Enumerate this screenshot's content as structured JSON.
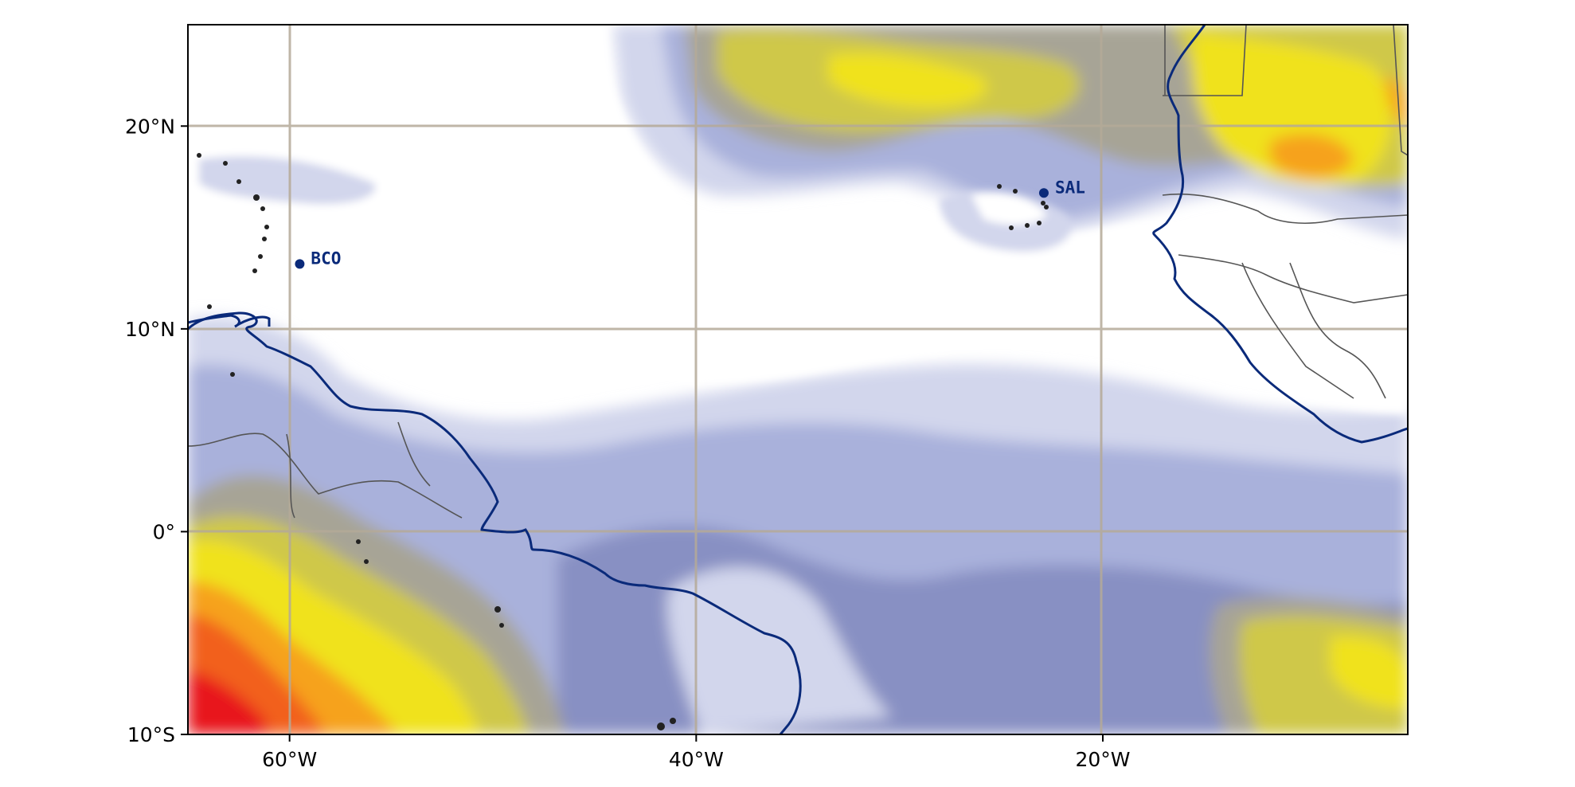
{
  "map": {
    "lon_range": [
      -65,
      -5
    ],
    "lat_range": [
      -10,
      25
    ],
    "gridlines": true,
    "x_ticks": [
      {
        "value": -60,
        "label": "60°W"
      },
      {
        "value": -40,
        "label": "40°W"
      },
      {
        "value": -20,
        "label": "20°W"
      }
    ],
    "y_ticks": [
      {
        "value": 20,
        "label": "20°N"
      },
      {
        "value": 10,
        "label": "10°N"
      },
      {
        "value": 0,
        "label": "0°"
      },
      {
        "value": -10,
        "label": "10°S"
      }
    ],
    "stations": [
      {
        "id": "bco",
        "label": "BCO",
        "lon": -59.5,
        "lat": 13.2
      },
      {
        "id": "sal",
        "label": "SAL",
        "lon": -22.9,
        "lat": 16.7
      }
    ],
    "colors": {
      "coastline": "#0a2a7a",
      "gridline": "#b5aa98",
      "field_levels": [
        "#ffffff",
        "#d2d6ec",
        "#a9b1db",
        "#8890c3",
        "#a7a496",
        "#cfc84a",
        "#f0e21c",
        "#f6a21a",
        "#f2601c",
        "#e8161a"
      ]
    }
  }
}
